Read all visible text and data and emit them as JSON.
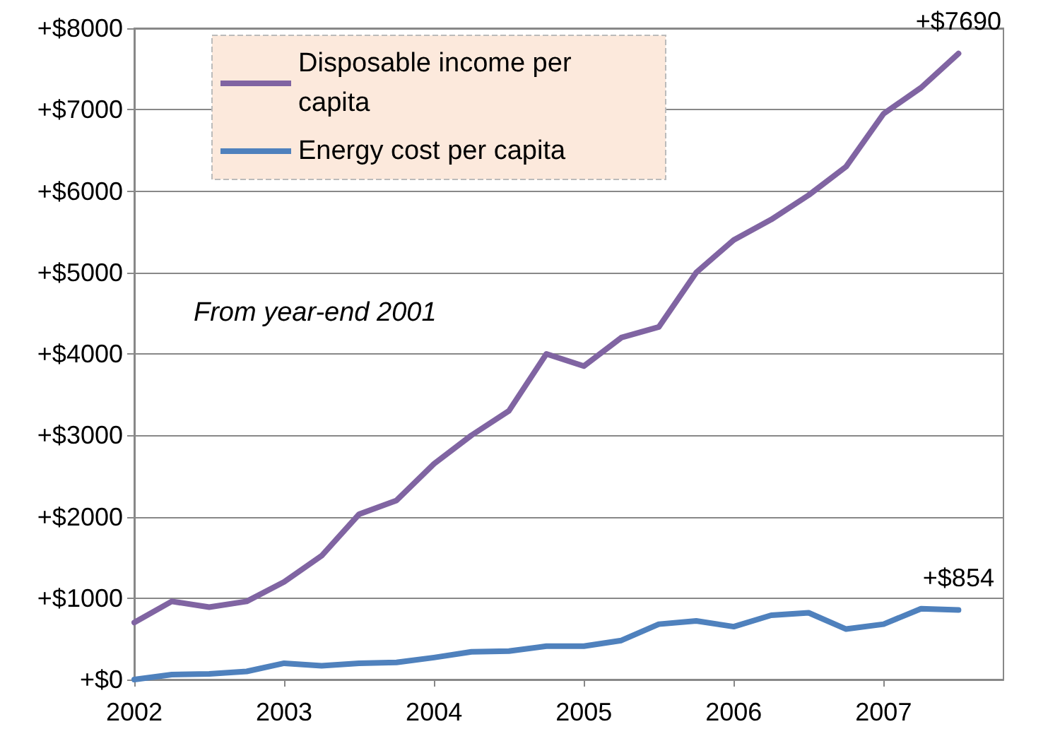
{
  "chart_data": {
    "type": "line",
    "x": [
      2002,
      2002.25,
      2002.5,
      2002.75,
      2003,
      2003.25,
      2003.5,
      2003.75,
      2004,
      2004.25,
      2004.5,
      2004.75,
      2005,
      2005.25,
      2005.5,
      2005.75,
      2006,
      2006.25,
      2006.5,
      2006.75,
      2007,
      2007.25,
      2007.5
    ],
    "series": [
      {
        "name": "Disposable income per capita",
        "color": "#8064a2",
        "values": [
          700,
          960,
          890,
          960,
          1200,
          1520,
          2030,
          2200,
          2650,
          3000,
          3300,
          4000,
          3850,
          4200,
          4330,
          5000,
          5400,
          5650,
          5950,
          6300,
          6950,
          7270,
          7690
        ]
      },
      {
        "name": "Energy cost per capita",
        "color": "#4f81bd",
        "values": [
          0,
          60,
          70,
          100,
          200,
          170,
          200,
          210,
          270,
          340,
          350,
          410,
          410,
          480,
          680,
          720,
          650,
          790,
          820,
          620,
          680,
          870,
          854
        ]
      }
    ],
    "xlim": [
      2002,
      2007.8
    ],
    "xticks": [
      2002,
      2003,
      2004,
      2005,
      2006,
      2007
    ],
    "ylim": [
      0,
      8000
    ],
    "yticks": [
      {
        "value": 0,
        "label": "+$0"
      },
      {
        "value": 1000,
        "label": "+$1000"
      },
      {
        "value": 2000,
        "label": "+$2000"
      },
      {
        "value": 3000,
        "label": "+$3000"
      },
      {
        "value": 4000,
        "label": "+$4000"
      },
      {
        "value": 5000,
        "label": "+$5000"
      },
      {
        "value": 6000,
        "label": "+$6000"
      },
      {
        "value": 7000,
        "label": "+$7000"
      },
      {
        "value": 8000,
        "label": "+$8000"
      }
    ],
    "annotations": [
      {
        "text": "+$7690",
        "x": 2007.5,
        "y": 7690
      },
      {
        "text": "+$854",
        "x": 2007.5,
        "y": 854
      },
      "From year-end 2001"
    ],
    "grid": "y",
    "legend": "top left",
    "marker": "none",
    "line_style": "solid"
  }
}
